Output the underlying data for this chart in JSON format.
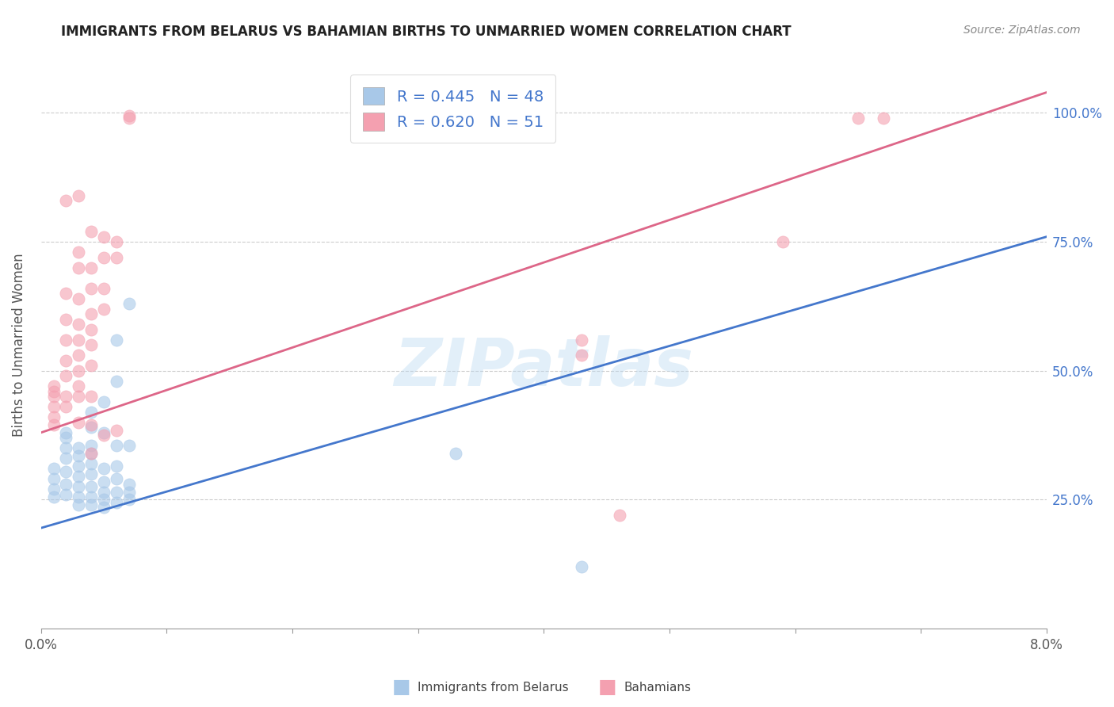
{
  "title": "IMMIGRANTS FROM BELARUS VS BAHAMIAN BIRTHS TO UNMARRIED WOMEN CORRELATION CHART",
  "source": "Source: ZipAtlas.com",
  "ylabel": "Births to Unmarried Women",
  "legend1_label": "Immigrants from Belarus",
  "legend2_label": "Bahamians",
  "R1": 0.445,
  "N1": 48,
  "R2": 0.62,
  "N2": 51,
  "watermark": "ZIPatlas",
  "blue_color": "#a8c8e8",
  "pink_color": "#f4a0b0",
  "blue_line_color": "#4477cc",
  "pink_line_color": "#dd6688",
  "blue_scatter": [
    [
      0.001,
      0.29
    ],
    [
      0.001,
      0.27
    ],
    [
      0.001,
      0.255
    ],
    [
      0.001,
      0.31
    ],
    [
      0.002,
      0.33
    ],
    [
      0.002,
      0.35
    ],
    [
      0.002,
      0.37
    ],
    [
      0.002,
      0.38
    ],
    [
      0.002,
      0.305
    ],
    [
      0.002,
      0.28
    ],
    [
      0.002,
      0.26
    ],
    [
      0.003,
      0.35
    ],
    [
      0.003,
      0.335
    ],
    [
      0.003,
      0.315
    ],
    [
      0.003,
      0.295
    ],
    [
      0.003,
      0.275
    ],
    [
      0.003,
      0.255
    ],
    [
      0.003,
      0.24
    ],
    [
      0.004,
      0.42
    ],
    [
      0.004,
      0.39
    ],
    [
      0.004,
      0.355
    ],
    [
      0.004,
      0.34
    ],
    [
      0.004,
      0.32
    ],
    [
      0.004,
      0.3
    ],
    [
      0.004,
      0.275
    ],
    [
      0.004,
      0.255
    ],
    [
      0.004,
      0.24
    ],
    [
      0.005,
      0.44
    ],
    [
      0.005,
      0.38
    ],
    [
      0.005,
      0.31
    ],
    [
      0.005,
      0.285
    ],
    [
      0.005,
      0.265
    ],
    [
      0.005,
      0.25
    ],
    [
      0.005,
      0.235
    ],
    [
      0.006,
      0.56
    ],
    [
      0.006,
      0.48
    ],
    [
      0.006,
      0.355
    ],
    [
      0.006,
      0.315
    ],
    [
      0.006,
      0.29
    ],
    [
      0.006,
      0.265
    ],
    [
      0.006,
      0.245
    ],
    [
      0.007,
      0.63
    ],
    [
      0.007,
      0.355
    ],
    [
      0.007,
      0.28
    ],
    [
      0.007,
      0.265
    ],
    [
      0.007,
      0.25
    ],
    [
      0.033,
      0.34
    ],
    [
      0.043,
      0.12
    ]
  ],
  "pink_scatter": [
    [
      0.001,
      0.43
    ],
    [
      0.001,
      0.45
    ],
    [
      0.001,
      0.46
    ],
    [
      0.001,
      0.47
    ],
    [
      0.001,
      0.395
    ],
    [
      0.001,
      0.41
    ],
    [
      0.002,
      0.83
    ],
    [
      0.002,
      0.65
    ],
    [
      0.002,
      0.6
    ],
    [
      0.002,
      0.56
    ],
    [
      0.002,
      0.52
    ],
    [
      0.002,
      0.49
    ],
    [
      0.002,
      0.45
    ],
    [
      0.002,
      0.43
    ],
    [
      0.003,
      0.84
    ],
    [
      0.003,
      0.73
    ],
    [
      0.003,
      0.7
    ],
    [
      0.003,
      0.64
    ],
    [
      0.003,
      0.59
    ],
    [
      0.003,
      0.56
    ],
    [
      0.003,
      0.53
    ],
    [
      0.003,
      0.5
    ],
    [
      0.003,
      0.47
    ],
    [
      0.003,
      0.45
    ],
    [
      0.003,
      0.4
    ],
    [
      0.004,
      0.77
    ],
    [
      0.004,
      0.7
    ],
    [
      0.004,
      0.66
    ],
    [
      0.004,
      0.61
    ],
    [
      0.004,
      0.58
    ],
    [
      0.004,
      0.55
    ],
    [
      0.004,
      0.51
    ],
    [
      0.004,
      0.45
    ],
    [
      0.004,
      0.395
    ],
    [
      0.004,
      0.34
    ],
    [
      0.005,
      0.76
    ],
    [
      0.005,
      0.72
    ],
    [
      0.005,
      0.66
    ],
    [
      0.005,
      0.62
    ],
    [
      0.005,
      0.375
    ],
    [
      0.006,
      0.75
    ],
    [
      0.006,
      0.72
    ],
    [
      0.006,
      0.385
    ],
    [
      0.007,
      0.995
    ],
    [
      0.007,
      0.99
    ],
    [
      0.043,
      0.56
    ],
    [
      0.043,
      0.53
    ],
    [
      0.046,
      0.22
    ],
    [
      0.059,
      0.75
    ],
    [
      0.065,
      0.99
    ],
    [
      0.067,
      0.99
    ]
  ],
  "xlim": [
    0.0,
    0.08
  ],
  "ylim": [
    0.0,
    1.1
  ],
  "blue_line_x": [
    0.0,
    0.08
  ],
  "blue_line_y": [
    0.195,
    0.76
  ],
  "pink_line_x": [
    0.0,
    0.08
  ],
  "pink_line_y": [
    0.38,
    1.04
  ],
  "xtick_positions": [
    0.0,
    0.01,
    0.02,
    0.03,
    0.04,
    0.05,
    0.06,
    0.07,
    0.08
  ],
  "ytick_positions": [
    0.25,
    0.5,
    0.75,
    1.0
  ],
  "ytick_labels": [
    "25.0%",
    "50.0%",
    "75.0%",
    "100.0%"
  ]
}
